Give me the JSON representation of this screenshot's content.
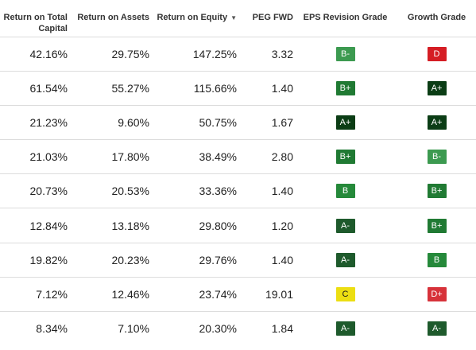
{
  "headers": {
    "rotc": "Return on Total Capital",
    "roa": "Return on Assets",
    "roe": "Return on Equity",
    "peg": "PEG FWD",
    "eps": "EPS Revision Grade",
    "growth": "Growth Grade"
  },
  "sort": {
    "column": "roe",
    "direction": "descending",
    "icon": "caret-down-icon"
  },
  "grade_colors": {
    "A+": "#0b3d15",
    "A-": "#1e5a2c",
    "B+": "#207a33",
    "B": "#25893a",
    "B-": "#3c9a50",
    "C": "#ecde12",
    "D+": "#d7323a",
    "D": "#d51d24"
  },
  "grade_text_colors": {
    "C": "#1b1b1b"
  },
  "rows": [
    {
      "rotc": "42.16%",
      "roa": "29.75%",
      "roe": "147.25%",
      "peg": "3.32",
      "eps": "B-",
      "growth": "D"
    },
    {
      "rotc": "61.54%",
      "roa": "55.27%",
      "roe": "115.66%",
      "peg": "1.40",
      "eps": "B+",
      "growth": "A+"
    },
    {
      "rotc": "21.23%",
      "roa": "9.60%",
      "roe": "50.75%",
      "peg": "1.67",
      "eps": "A+",
      "growth": "A+"
    },
    {
      "rotc": "21.03%",
      "roa": "17.80%",
      "roe": "38.49%",
      "peg": "2.80",
      "eps": "B+",
      "growth": "B-"
    },
    {
      "rotc": "20.73%",
      "roa": "20.53%",
      "roe": "33.36%",
      "peg": "1.40",
      "eps": "B",
      "growth": "B+"
    },
    {
      "rotc": "12.84%",
      "roa": "13.18%",
      "roe": "29.80%",
      "peg": "1.20",
      "eps": "A-",
      "growth": "B+"
    },
    {
      "rotc": "19.82%",
      "roa": "20.23%",
      "roe": "29.76%",
      "peg": "1.40",
      "eps": "A-",
      "growth": "B"
    },
    {
      "rotc": "7.12%",
      "roa": "12.46%",
      "roe": "23.74%",
      "peg": "19.01",
      "eps": "C",
      "growth": "D+"
    },
    {
      "rotc": "8.34%",
      "roa": "7.10%",
      "roe": "20.30%",
      "peg": "1.84",
      "eps": "A-",
      "growth": "A-"
    }
  ]
}
